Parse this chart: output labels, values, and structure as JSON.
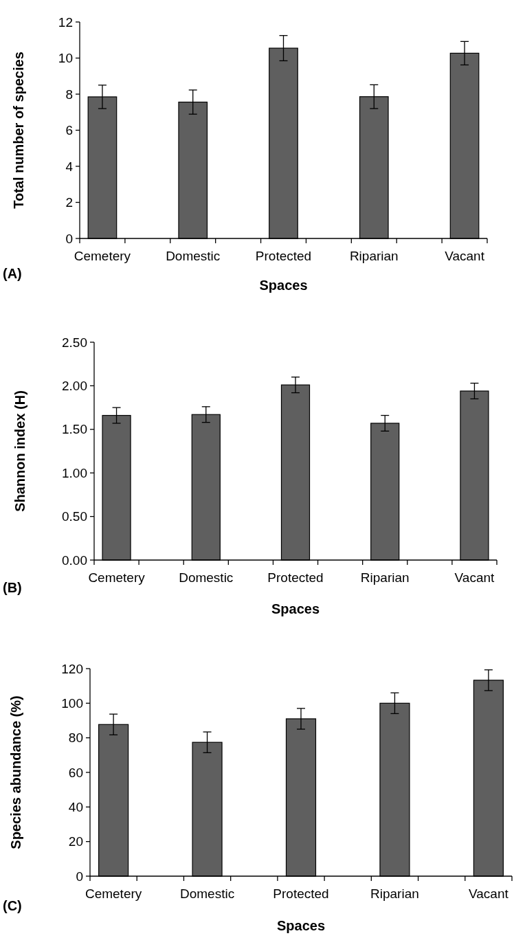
{
  "chart_data": [
    {
      "type": "bar",
      "categories": [
        "Cemetery",
        null,
        "Domestic",
        null,
        "Protected",
        null,
        "Riparian",
        null,
        "Vacant"
      ],
      "values": [
        7.85,
        null,
        7.56,
        null,
        10.55,
        null,
        7.86,
        null,
        10.27
      ],
      "errors": [
        0.65,
        null,
        0.67,
        null,
        0.7,
        null,
        0.66,
        null,
        0.65
      ],
      "color": "#5f5f5f",
      "xlabel": "Spaces",
      "ylabel": "Total number of species",
      "ylim": [
        0,
        12
      ],
      "yticks": [
        0,
        2,
        4,
        6,
        8,
        10,
        12
      ],
      "grid": false,
      "annotations": [
        "(A)"
      ]
    },
    {
      "type": "bar",
      "categories": [
        "Cemetery",
        null,
        "Domestic",
        null,
        "Protected",
        null,
        "Riparian",
        null,
        "Vacant"
      ],
      "values": [
        1.66,
        null,
        1.67,
        null,
        2.01,
        null,
        1.57,
        null,
        1.94
      ],
      "errors": [
        0.09,
        null,
        0.09,
        null,
        0.09,
        null,
        0.09,
        null,
        0.09
      ],
      "color": "#5f5f5f",
      "xlabel": "Spaces",
      "ylabel": "Shannon index (H)",
      "ylim": [
        0,
        2.5
      ],
      "yticks": [
        {
          "value": 0,
          "label": "0.00"
        },
        {
          "value": 0.5,
          "label": "0.50"
        },
        {
          "value": 1,
          "label": "1.00"
        },
        {
          "value": 1.5,
          "label": "1.50"
        },
        {
          "value": 2,
          "label": "2.00"
        },
        {
          "value": 2.5,
          "label": "2.50"
        }
      ],
      "grid": false,
      "annotations": [
        "(B)"
      ]
    },
    {
      "type": "bar",
      "categories": [
        "Cemetery",
        null,
        "Domestic",
        null,
        "Protected",
        null,
        "Riparian",
        null,
        "Vacant"
      ],
      "values": [
        87.7,
        null,
        77.4,
        null,
        91,
        null,
        100,
        null,
        113.3
      ],
      "errors": [
        6,
        null,
        6,
        null,
        6,
        null,
        6,
        null,
        6
      ],
      "color": "#5f5f5f",
      "xlabel": "Spaces",
      "ylabel": "Species abundance (%)",
      "ylim": [
        0,
        120
      ],
      "yticks": [
        0,
        20,
        40,
        60,
        80,
        100,
        120
      ],
      "grid": false,
      "annotations": [
        "(C)"
      ]
    }
  ]
}
